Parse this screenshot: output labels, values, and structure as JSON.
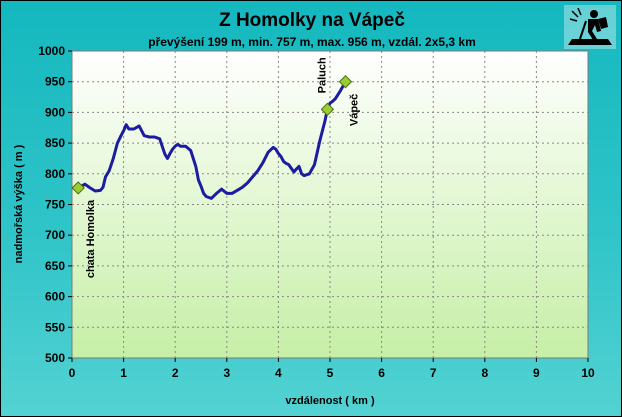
{
  "title": "Z Homolky na Vápeč",
  "subtitle": "převýšení 199 m, min. 757 m, max. 956 m, vzdál. 2x5,3 km",
  "logo_icon": "hiker-logo-icon",
  "chart_data": {
    "type": "line",
    "title": "Z Homolky na Vápeč",
    "subtitle": "převýšení 199 m, min. 757 m, max. 956 m, vzdál. 2x5,3 km",
    "xlabel": "vzdálenost ( km )",
    "ylabel": "nadmořská výška ( m )",
    "xlim": [
      0,
      10
    ],
    "ylim": [
      500,
      1000
    ],
    "xticks": [
      "0",
      "1",
      "2",
      "3",
      "4",
      "5",
      "6",
      "7",
      "8",
      "9",
      "10"
    ],
    "yticks": [
      "500",
      "550",
      "600",
      "650",
      "700",
      "750",
      "800",
      "850",
      "900",
      "950",
      "1000"
    ],
    "grid": true,
    "line_color": "#1c1ca0",
    "marker_color": "#9acd32",
    "series": [
      {
        "x": [
          0.12,
          0.25,
          0.35,
          0.45,
          0.55,
          0.6,
          0.65,
          0.72,
          0.8,
          0.88,
          0.95,
          1.0,
          1.05,
          1.1,
          1.2,
          1.3,
          1.4,
          1.5,
          1.6,
          1.7,
          1.8,
          1.85,
          1.9,
          1.95,
          2.0,
          2.05,
          2.1,
          2.2,
          2.3,
          2.4,
          2.45,
          2.5,
          2.55,
          2.6,
          2.7,
          2.8,
          2.9,
          3.0,
          3.1,
          3.2,
          3.3,
          3.4,
          3.5,
          3.6,
          3.7,
          3.8,
          3.9,
          3.95,
          4.0,
          4.05,
          4.1,
          4.15,
          4.2,
          4.3,
          4.35,
          4.4,
          4.45,
          4.5,
          4.6,
          4.7,
          4.8,
          4.9,
          4.95,
          5.0,
          5.05,
          5.1,
          5.2,
          5.3
        ],
        "y": [
          777,
          783,
          777,
          772,
          773,
          778,
          795,
          805,
          825,
          850,
          862,
          870,
          880,
          873,
          873,
          878,
          862,
          860,
          860,
          857,
          832,
          825,
          833,
          840,
          845,
          848,
          845,
          845,
          838,
          812,
          790,
          780,
          768,
          763,
          760,
          768,
          775,
          768,
          768,
          773,
          778,
          785,
          795,
          805,
          818,
          835,
          843,
          840,
          833,
          828,
          820,
          817,
          815,
          803,
          808,
          812,
          800,
          797,
          800,
          815,
          853,
          885,
          905,
          915,
          918,
          922,
          935,
          950
        ]
      }
    ],
    "markers": [
      {
        "x": 0.12,
        "y": 777,
        "label": "chata Homolka"
      },
      {
        "x": 4.95,
        "y": 905,
        "label": "Paluch"
      },
      {
        "x": 5.3,
        "y": 950,
        "label": "Vápeč"
      }
    ]
  }
}
